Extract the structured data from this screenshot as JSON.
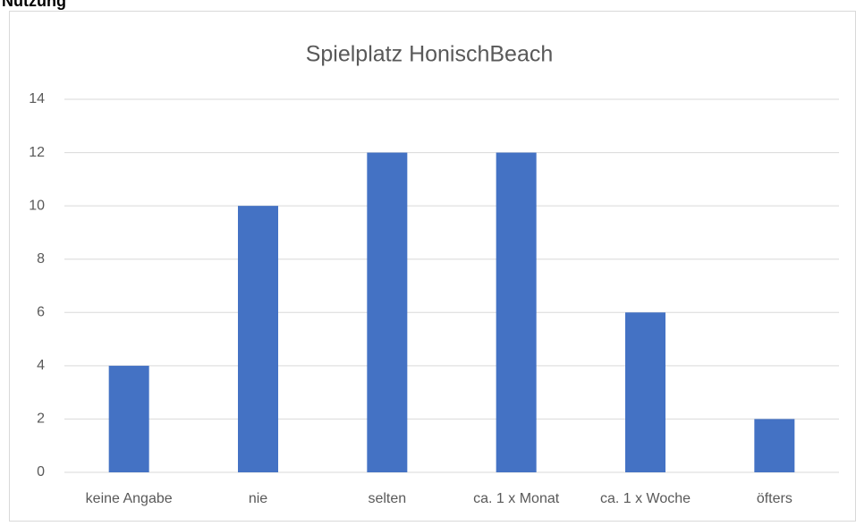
{
  "heading": "Nutzung",
  "chart_data": {
    "type": "bar",
    "title": "Spielplatz HonischBeach",
    "categories": [
      "keine Angabe",
      "nie",
      "selten",
      "ca. 1 x Monat",
      "ca. 1 x Woche",
      "öfters"
    ],
    "values": [
      4,
      10,
      12,
      12,
      6,
      2
    ],
    "color": "#4472c4",
    "ylim": [
      0,
      14
    ],
    "yticks": [
      0,
      2,
      4,
      6,
      8,
      10,
      12,
      14
    ],
    "grid": true
  }
}
